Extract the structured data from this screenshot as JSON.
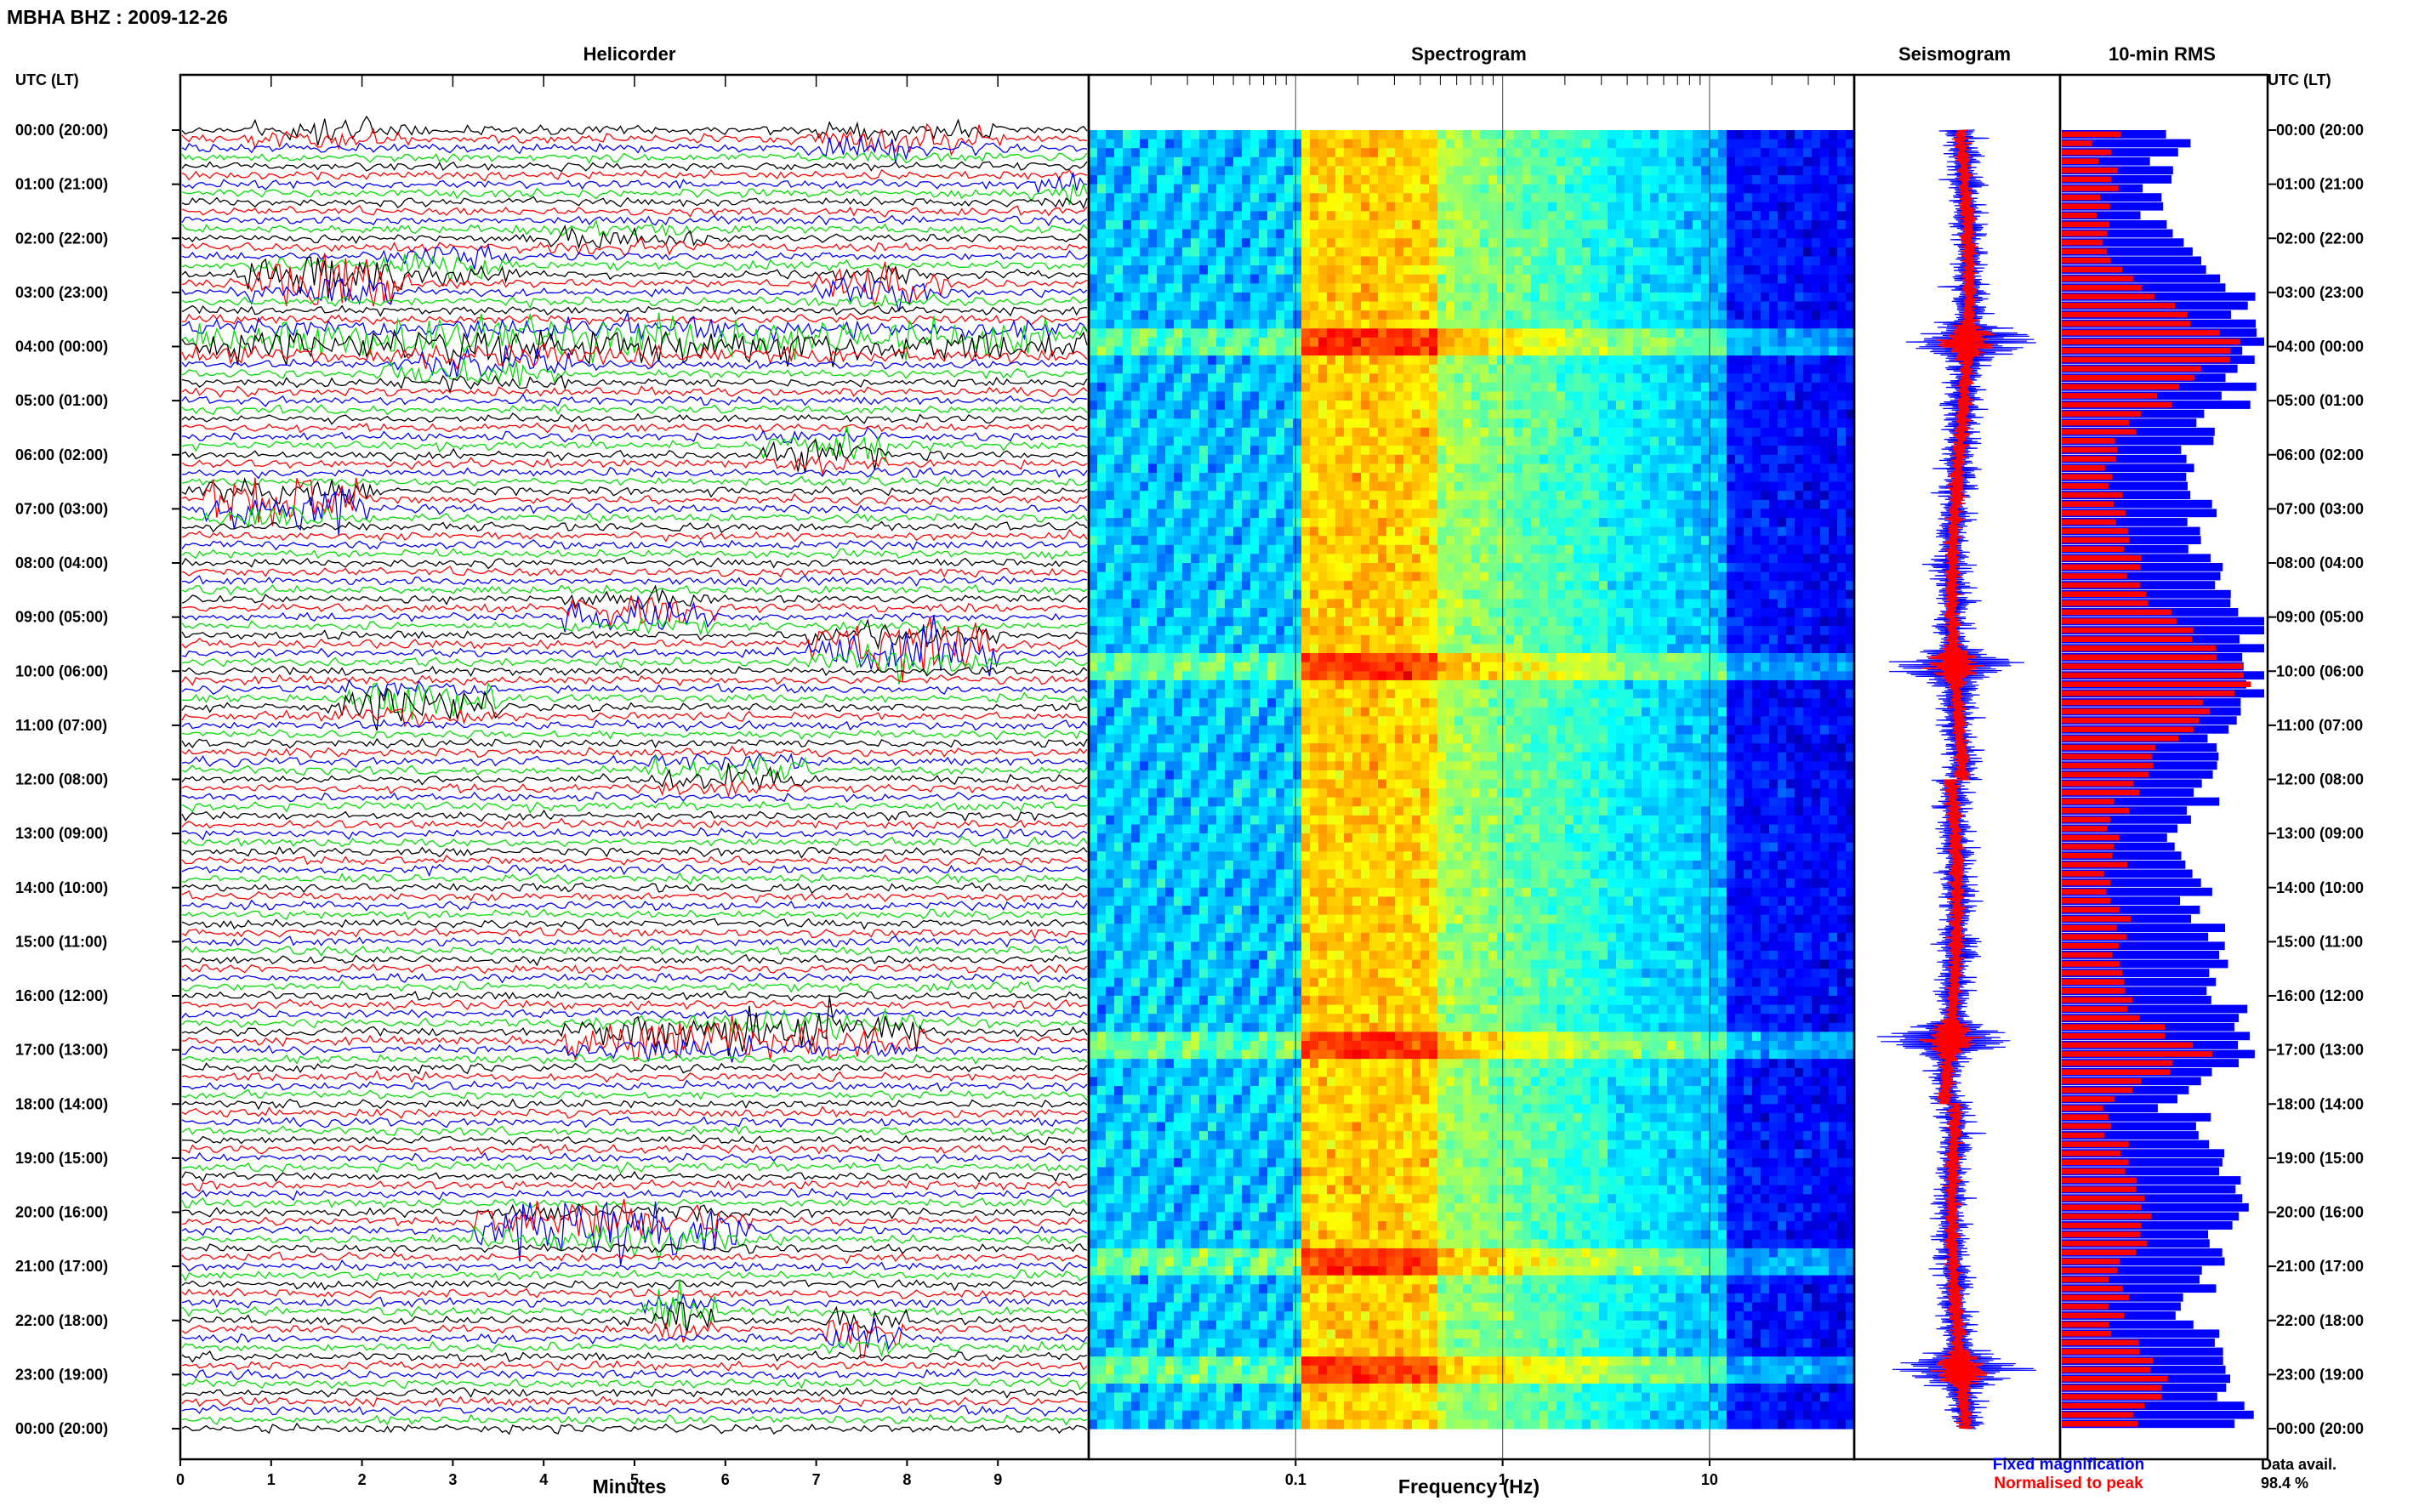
{
  "header": {
    "title": "MBHA BHZ : 2009-12-26"
  },
  "panels": {
    "helicorder": "Helicorder",
    "spectrogram": "Spectrogram",
    "seismogram": "Seismogram",
    "rms": "10-min RMS"
  },
  "axes": {
    "utc_label_left": "UTC (LT)",
    "utc_label_right": "UTC (LT)",
    "helicorder_xlabel": "Minutes",
    "spectrogram_xlabel": "Frequency (Hz)"
  },
  "legend": {
    "fixed_magnification": "Fixed magnification",
    "normalised_to_peak": "Normalised to peak",
    "fixed_color": "#0000ff",
    "normalised_color": "#ff0000"
  },
  "footer": {
    "data_avail_label": "Data avail.",
    "data_avail_value": "98.4 %"
  },
  "colors": {
    "trace_cycle": [
      "#000000",
      "#ff0000",
      "#0000ff",
      "#00dd00"
    ],
    "spectrogram_low": "#00008f",
    "spectrogram_high": "#ff2200",
    "rms_fixed": "#0000ff",
    "rms_normalised": "#ff0000"
  },
  "chart_data": [
    {
      "type": "line",
      "name": "helicorder",
      "title": "Helicorder",
      "xlabel": "Minutes",
      "xlim": [
        0,
        10
      ],
      "x_ticks": [
        "0",
        "1",
        "2",
        "3",
        "4",
        "5",
        "6",
        "7",
        "8",
        "9"
      ],
      "lines": 144,
      "minutes_per_line": 10,
      "y_tick_labels": [
        "00:00 (20:00)",
        "01:00 (21:00)",
        "02:00 (22:00)",
        "03:00 (23:00)",
        "04:00 (00:00)",
        "05:00 (01:00)",
        "06:00 (02:00)",
        "07:00 (03:00)",
        "08:00 (04:00)",
        "09:00 (05:00)",
        "10:00 (06:00)",
        "11:00 (07:00)",
        "12:00 (08:00)",
        "13:00 (09:00)",
        "14:00 (10:00)",
        "15:00 (11:00)",
        "16:00 (12:00)",
        "17:00 (13:00)",
        "18:00 (14:00)",
        "19:00 (15:00)",
        "20:00 (16:00)",
        "21:00 (17:00)",
        "22:00 (18:00)",
        "23:00 (19:00)",
        "00:00 (20:00)"
      ],
      "events": [
        {
          "hour": 0.0,
          "minute_start": 1.1,
          "minute_end": 2.5,
          "strength": 0.7
        },
        {
          "hour": 0.2,
          "minute_start": 7.2,
          "minute_end": 8.8,
          "strength": 0.8
        },
        {
          "hour": 1.1,
          "minute_start": 9.6,
          "minute_end": 10.0,
          "strength": 0.6
        },
        {
          "hour": 2.0,
          "minute_start": 4.0,
          "minute_end": 5.5,
          "strength": 0.5
        },
        {
          "hour": 2.5,
          "minute_start": 2.5,
          "minute_end": 3.4,
          "strength": 1.0
        },
        {
          "hour": 2.8,
          "minute_start": 1.0,
          "minute_end": 2.2,
          "strength": 1.8
        },
        {
          "hour": 2.9,
          "minute_start": 7.3,
          "minute_end": 8.2,
          "strength": 1.2
        },
        {
          "hour": 3.9,
          "minute_start": 0.0,
          "minute_end": 10.0,
          "strength": 1.3
        },
        {
          "hour": 4.4,
          "minute_start": 2.5,
          "minute_end": 4.0,
          "strength": 1.0
        },
        {
          "hour": 5.9,
          "minute_start": 6.7,
          "minute_end": 7.5,
          "strength": 1.2
        },
        {
          "hour": 6.9,
          "minute_start": 0.5,
          "minute_end": 1.8,
          "strength": 2.0
        },
        {
          "hour": 8.9,
          "minute_start": 4.5,
          "minute_end": 5.6,
          "strength": 1.3
        },
        {
          "hour": 9.6,
          "minute_start": 7.2,
          "minute_end": 8.7,
          "strength": 2.2
        },
        {
          "hour": 10.6,
          "minute_start": 2.0,
          "minute_end": 3.2,
          "strength": 1.5
        },
        {
          "hour": 11.9,
          "minute_start": 5.5,
          "minute_end": 6.6,
          "strength": 1.0
        },
        {
          "hour": 16.8,
          "minute_start": 4.5,
          "minute_end": 6.0,
          "strength": 1.5
        },
        {
          "hour": 16.7,
          "minute_start": 6.3,
          "minute_end": 7.9,
          "strength": 1.6
        },
        {
          "hour": 20.3,
          "minute_start": 3.5,
          "minute_end": 6.0,
          "strength": 1.8
        },
        {
          "hour": 21.9,
          "minute_start": 5.4,
          "minute_end": 5.6,
          "strength": 2.0
        },
        {
          "hour": 22.2,
          "minute_start": 7.4,
          "minute_end": 7.7,
          "strength": 1.8
        }
      ]
    },
    {
      "type": "heatmap",
      "name": "spectrogram",
      "title": "Spectrogram",
      "xlabel": "Frequency (Hz)",
      "x_scale": "log",
      "xlim": [
        0.01,
        50
      ],
      "x_tick_labels": [
        "0.1",
        "1",
        "10"
      ],
      "x_ticks": [
        0.1,
        1,
        10
      ],
      "peak_band_hz": [
        0.1,
        0.4
      ],
      "high_energy_hours": [
        3.9,
        9.9,
        16.8,
        20.9,
        22.9
      ]
    },
    {
      "type": "line",
      "name": "seismogram",
      "title": "Seismogram",
      "series": [
        {
          "name": "Fixed magnification",
          "color": "#0000ff"
        },
        {
          "name": "Normalised to peak",
          "color": "#ff0000"
        }
      ],
      "spikes_hours": [
        3.9,
        9.9,
        16.8,
        22.9
      ]
    },
    {
      "type": "bar",
      "name": "rms",
      "title": "10-min RMS",
      "orientation": "horizontal",
      "bins": 144,
      "series": [
        {
          "name": "Fixed magnification",
          "color": "#0000ff"
        },
        {
          "name": "Normalised to peak",
          "color": "#ff0000"
        }
      ],
      "hourly_fixed_level": [
        0.55,
        0.5,
        0.6,
        0.9,
        1.0,
        0.85,
        0.6,
        0.7,
        0.75,
        0.95,
        1.0,
        0.85,
        0.7,
        0.6,
        0.65,
        0.75,
        0.8,
        0.95,
        0.55,
        0.8,
        0.85,
        0.7,
        0.65,
        0.85,
        0.9
      ],
      "hourly_normalised_level": [
        0.2,
        0.2,
        0.22,
        0.45,
        0.85,
        0.45,
        0.25,
        0.3,
        0.35,
        0.55,
        0.9,
        0.6,
        0.35,
        0.25,
        0.25,
        0.3,
        0.3,
        0.65,
        0.2,
        0.3,
        0.45,
        0.3,
        0.25,
        0.5,
        0.3
      ],
      "data_available_percent": 98.4
    }
  ]
}
